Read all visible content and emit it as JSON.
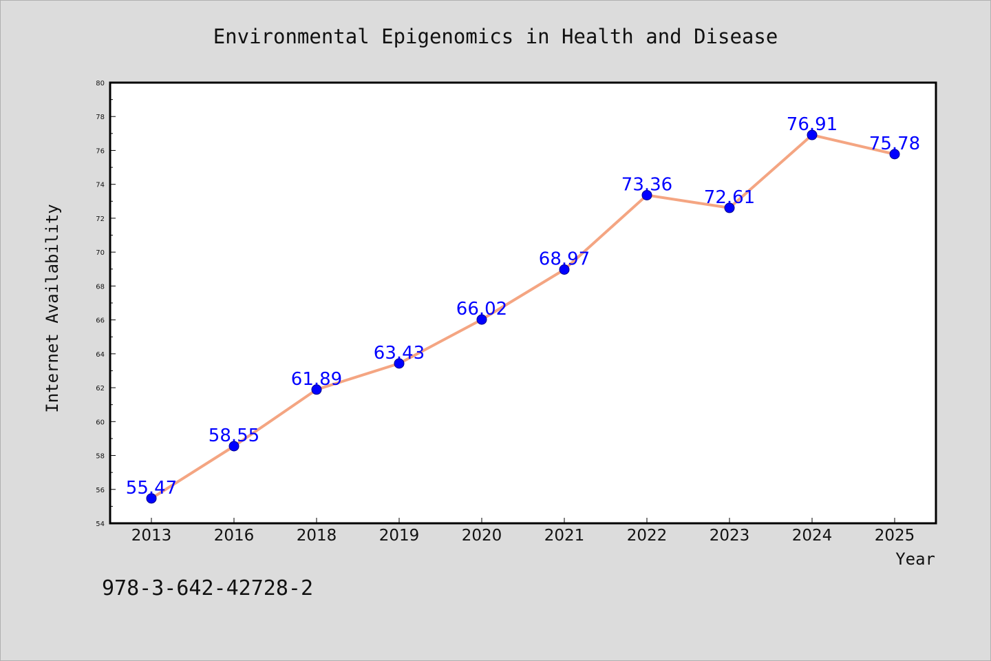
{
  "chart_data": {
    "type": "line",
    "title": "Environmental Epigenomics in Health and Disease",
    "xlabel": "Year",
    "ylabel": "Internet Availability",
    "categories": [
      "2013",
      "2016",
      "2018",
      "2019",
      "2020",
      "2021",
      "2022",
      "2023",
      "2024",
      "2025"
    ],
    "values": [
      55.47,
      58.55,
      61.89,
      63.43,
      66.02,
      68.97,
      73.36,
      72.61,
      76.91,
      75.78
    ],
    "value_labels": [
      "55.47",
      "58.55",
      "61.89",
      "63.43",
      "66.02",
      "68.97",
      "73.36",
      "72.61",
      "76.91",
      "75.78"
    ],
    "ylim": [
      54,
      80
    ],
    "yticks": [
      54,
      56,
      58,
      60,
      62,
      64,
      66,
      68,
      70,
      72,
      74,
      76,
      78,
      80
    ],
    "ytick_labels": [
      "54",
      "56",
      "58",
      "60",
      "62",
      "64",
      "66",
      "68",
      "70",
      "72",
      "74",
      "76",
      "78",
      "80"
    ],
    "grid": false,
    "colors": {
      "line": "#f4a582",
      "marker": "#0000ff",
      "data_label": "#0000ff",
      "plot_background": "#ffffff",
      "figure_background": "#dcdcdc"
    }
  },
  "annotation": {
    "isbn": "978-3-642-42728-2"
  }
}
